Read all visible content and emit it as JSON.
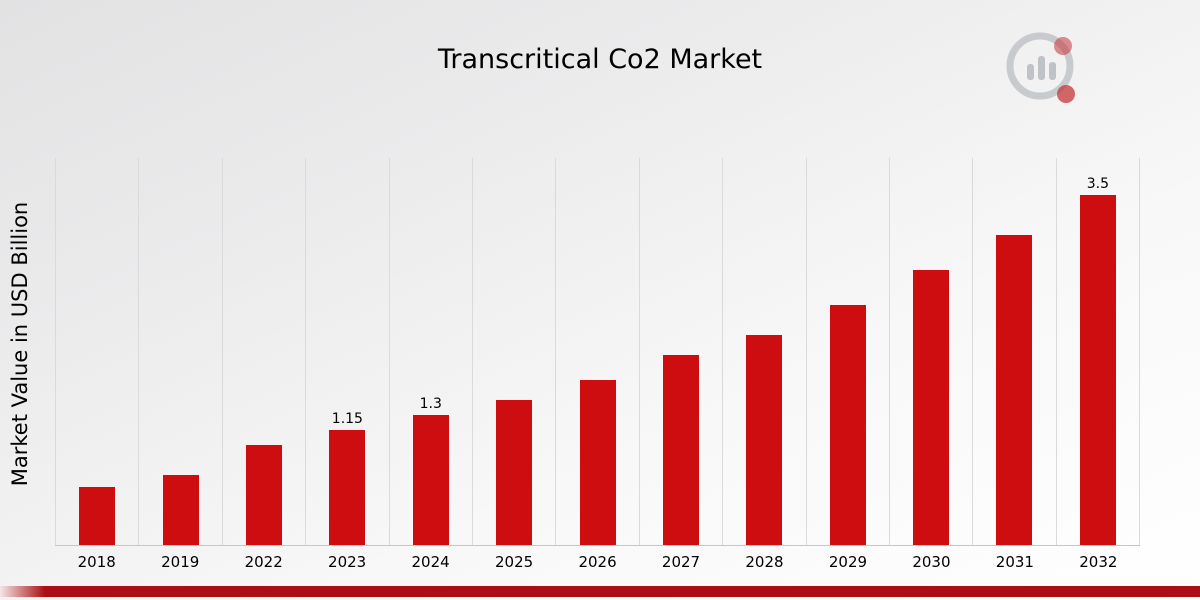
{
  "title": "Transcritical Co2 Market",
  "y_axis_label": "Market Value in USD Billion",
  "logo": "market-research-bar-chart-logo",
  "colors": {
    "bar": "#ce0d10",
    "bottom_strip": "#a90f14",
    "gridline": "#dadada",
    "background_top": "#e2e2e3",
    "logo_gray": "#b9bdc2",
    "logo_red": "#c5353a"
  },
  "chart_data": {
    "type": "bar",
    "title": "Transcritical Co2 Market",
    "xlabel": "",
    "ylabel": "Market Value in USD Billion",
    "categories": [
      "2018",
      "2019",
      "2022",
      "2023",
      "2024",
      "2025",
      "2026",
      "2027",
      "2028",
      "2029",
      "2030",
      "2031",
      "2032"
    ],
    "values": [
      0.58,
      0.7,
      1.0,
      1.15,
      1.3,
      1.45,
      1.65,
      1.9,
      2.1,
      2.4,
      2.75,
      3.1,
      3.5
    ],
    "value_labels": {
      "2023": "1.15",
      "2024": "1.3",
      "2032": "3.5"
    },
    "ylim": [
      0,
      3.87
    ],
    "grid": "vertical",
    "legend_position": "none",
    "bar_color": "#ce0d10"
  }
}
